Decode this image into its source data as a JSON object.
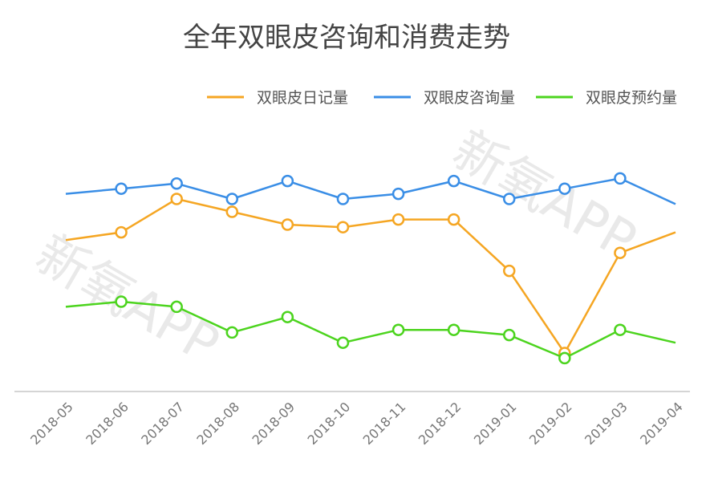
{
  "chart_data": {
    "type": "line",
    "title": "全年双眼皮咨询和消费走势",
    "categories": [
      "2018-05",
      "2018-06",
      "2018-07",
      "2018-08",
      "2018-09",
      "2018-10",
      "2018-11",
      "2018-12",
      "2019-01",
      "2019-02",
      "2019-03",
      "2019-04"
    ],
    "ylim": [
      0,
      100
    ],
    "grid": false,
    "legend_position": "top-right",
    "markers_on": [
      false,
      true,
      true,
      true,
      true,
      true,
      true,
      true,
      true,
      true,
      true,
      false
    ],
    "series": [
      {
        "name": "双眼皮日记量",
        "color": "#f5a623",
        "values": [
          59,
          62,
          75,
          70,
          65,
          64,
          67,
          67,
          47,
          15,
          54,
          62
        ]
      },
      {
        "name": "双眼皮咨询量",
        "color": "#3a8ee6",
        "values": [
          77,
          79,
          81,
          75,
          82,
          75,
          77,
          82,
          75,
          79,
          83,
          73
        ]
      },
      {
        "name": "双眼皮预约量",
        "color": "#4cd41e",
        "values": [
          33,
          35,
          33,
          23,
          29,
          19,
          24,
          24,
          22,
          13,
          24,
          19
        ]
      }
    ],
    "watermark": "新氧APP"
  }
}
